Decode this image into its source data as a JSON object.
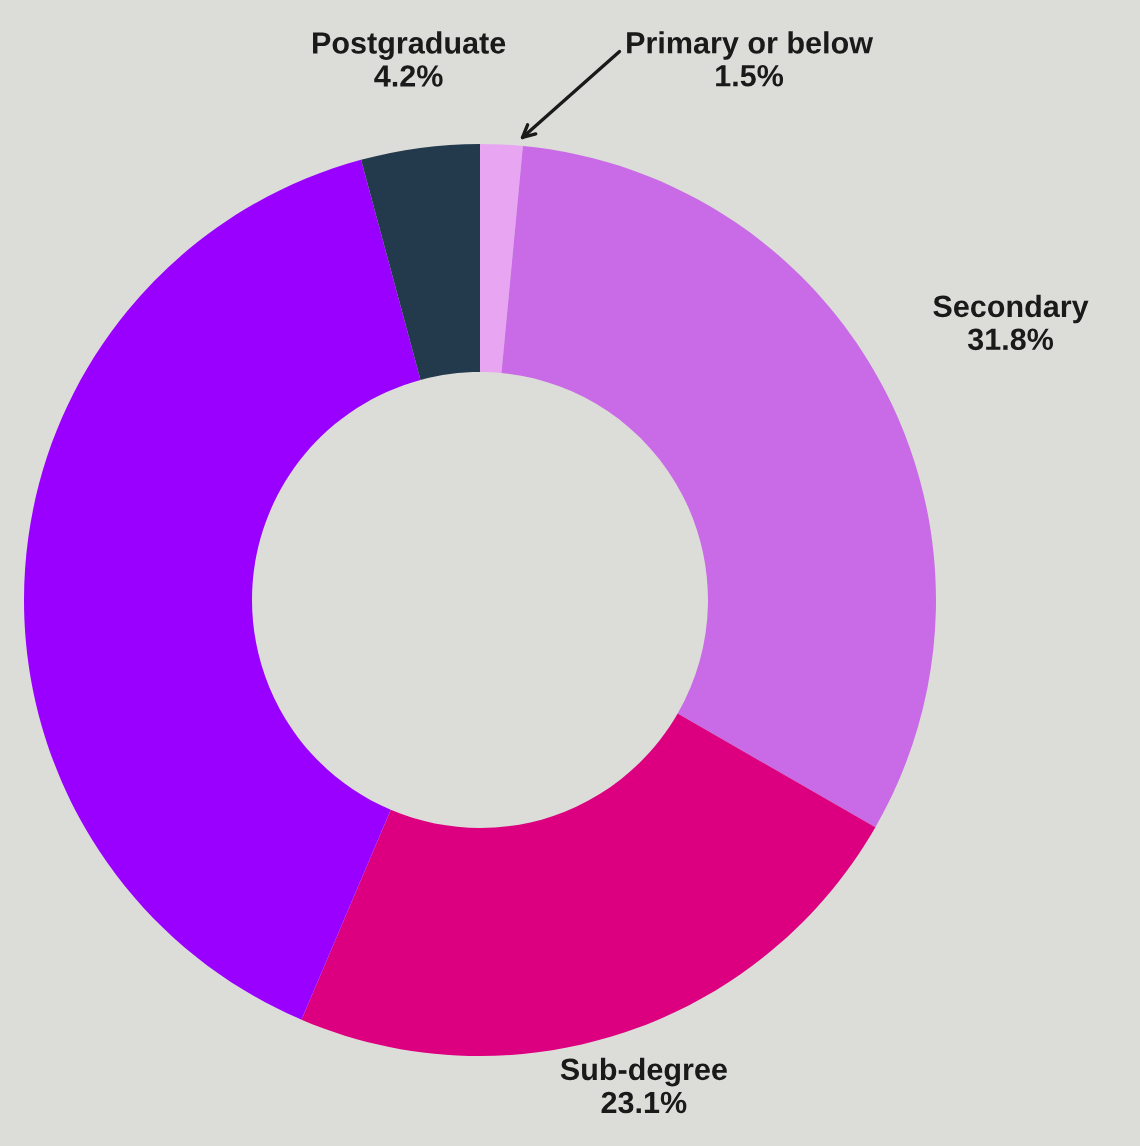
{
  "chart_data": {
    "type": "donut",
    "categories": [
      "Primary or below",
      "Secondary",
      "Sub-degree",
      null,
      "Postgraduate"
    ],
    "values": [
      1.5,
      31.8,
      23.1,
      39.4,
      4.2
    ],
    "value_labels": [
      "1.5%",
      "31.8%",
      "23.1%",
      null,
      "4.2%"
    ],
    "colors": [
      "#e8a6f2",
      "#c96ae6",
      "#dc0080",
      "#9a00ff",
      "#233a4d"
    ]
  }
}
